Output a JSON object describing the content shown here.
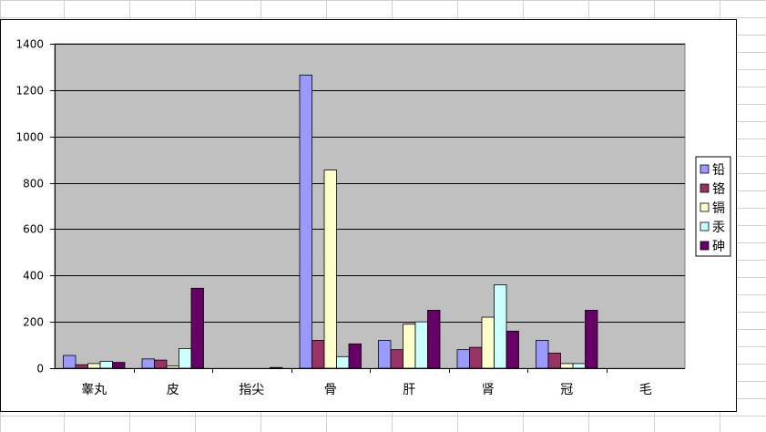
{
  "chart_data": {
    "type": "bar",
    "categories": [
      "睾丸",
      "皮",
      "指尖",
      "骨",
      "肝",
      "肾",
      "冠",
      "毛"
    ],
    "series": [
      {
        "name": "铅",
        "color": "#9999ff",
        "values": [
          55,
          40,
          0,
          1265,
          120,
          80,
          120,
          0
        ]
      },
      {
        "name": "铬",
        "color": "#993366",
        "values": [
          15,
          35,
          0,
          120,
          80,
          90,
          65,
          0
        ]
      },
      {
        "name": "镉",
        "color": "#ffffcc",
        "values": [
          20,
          10,
          0,
          855,
          190,
          220,
          20,
          0
        ]
      },
      {
        "name": "汞",
        "color": "#ccffff",
        "values": [
          30,
          85,
          0,
          50,
          200,
          360,
          20,
          0
        ]
      },
      {
        "name": "砷",
        "color": "#660066",
        "values": [
          25,
          345,
          3,
          105,
          250,
          160,
          250,
          0
        ]
      }
    ],
    "ylim": [
      0,
      1400
    ],
    "yticks": [
      0,
      200,
      400,
      600,
      800,
      1000,
      1200,
      1400
    ],
    "plot_background": "#c0c0c0",
    "grid": true,
    "legend_position": "right"
  }
}
